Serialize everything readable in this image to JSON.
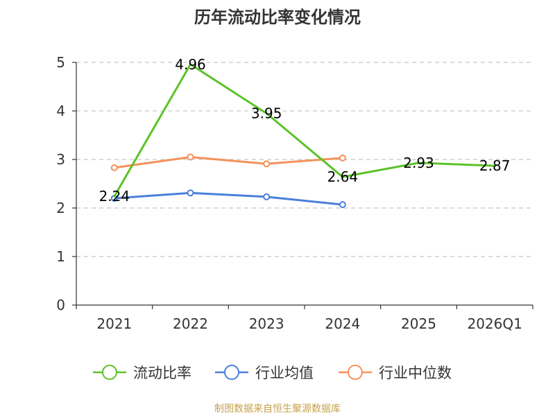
{
  "chart_data": {
    "type": "line",
    "title": "历年流动比率变化情况",
    "categories": [
      "2021",
      "2022",
      "2023",
      "2024",
      "2025",
      "2026Q1"
    ],
    "y_ticks": [
      "0",
      "1",
      "2",
      "3",
      "4",
      "5"
    ],
    "ylim": [
      0,
      5
    ],
    "grid": true,
    "legend_position": "bottom",
    "series": [
      {
        "name": "流动比率",
        "color": "#5cc228",
        "values": [
          2.24,
          4.96,
          3.95,
          2.64,
          2.93,
          2.87
        ],
        "labels": [
          "2.24",
          "4.96",
          "3.95",
          "2.64",
          "2.93",
          "2.87"
        ]
      },
      {
        "name": "行业均值",
        "color": "#4a7fdc",
        "values": [
          2.2,
          2.31,
          2.23,
          2.07,
          null,
          null
        ]
      },
      {
        "name": "行业中位数",
        "color": "#f5915a",
        "values": [
          2.83,
          3.05,
          2.91,
          3.03,
          null,
          null
        ]
      }
    ]
  },
  "source_text": "制图数据来自恒生聚源数据库"
}
